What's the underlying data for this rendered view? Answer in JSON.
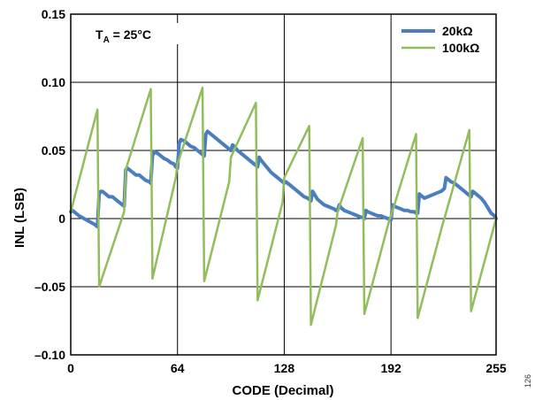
{
  "chart_data": {
    "type": "line",
    "xlabel": "CODE (Decimal)",
    "ylabel": "INL (LSB)",
    "xlim": [
      0,
      255
    ],
    "ylim": [
      -0.1,
      0.15
    ],
    "x_ticks": [
      "0",
      "64",
      "128",
      "192",
      "255"
    ],
    "x_tick_values": [
      0,
      64,
      128,
      192,
      255
    ],
    "y_ticks": [
      "0.15",
      "0.10",
      "0.05",
      "0",
      "–0.05",
      "–0.10"
    ],
    "y_tick_values": [
      0.15,
      0.1,
      0.05,
      0,
      -0.05,
      -0.1
    ],
    "grid": true,
    "legend_position": "top-right",
    "annotation": {
      "main": "T",
      "sub": "A",
      "rest": " = 25°C"
    },
    "figure_number": "126",
    "series": [
      {
        "name": "20kΩ",
        "color": "#4a7ebf",
        "x": [
          0,
          1,
          2,
          3,
          5,
          8,
          11,
          14,
          16,
          17,
          18,
          19,
          21,
          23,
          25,
          27,
          29,
          31,
          32,
          33,
          34,
          35,
          37,
          39,
          41,
          43,
          45,
          47,
          48,
          49,
          50,
          52,
          54,
          56,
          58,
          60,
          62,
          63,
          64,
          65,
          66,
          68,
          70,
          72,
          74,
          76,
          78,
          79,
          80,
          81,
          82,
          84,
          86,
          88,
          90,
          92,
          94,
          95,
          96,
          97,
          98,
          100,
          102,
          104,
          106,
          108,
          110,
          111,
          112,
          113,
          114,
          116,
          118,
          120,
          122,
          124,
          126,
          127,
          128,
          129,
          130,
          132,
          134,
          136,
          138,
          140,
          142,
          143,
          144,
          145,
          146,
          148,
          150,
          152,
          154,
          156,
          158,
          159,
          160,
          161,
          162,
          164,
          166,
          168,
          170,
          172,
          174,
          175,
          176,
          177,
          178,
          180,
          182,
          184,
          186,
          188,
          190,
          191,
          192,
          193,
          194,
          196,
          198,
          200,
          202,
          204,
          206,
          207,
          208,
          209,
          210,
          212,
          214,
          216,
          218,
          220,
          222,
          223,
          224,
          225,
          226,
          228,
          230,
          232,
          234,
          236,
          238,
          239,
          240,
          241,
          242,
          244,
          246,
          248,
          250,
          252,
          254,
          255
        ],
        "y": [
          0.005,
          0.006,
          0.005,
          0.004,
          0.002,
          0.0,
          -0.002,
          -0.004,
          -0.006,
          0.018,
          0.02,
          0.02,
          0.018,
          0.016,
          0.016,
          0.014,
          0.012,
          0.01,
          0.009,
          0.036,
          0.037,
          0.036,
          0.034,
          0.032,
          0.032,
          0.03,
          0.028,
          0.027,
          0.026,
          0.046,
          0.049,
          0.048,
          0.046,
          0.044,
          0.043,
          0.041,
          0.04,
          0.038,
          0.037,
          0.055,
          0.058,
          0.057,
          0.055,
          0.053,
          0.052,
          0.05,
          0.048,
          0.047,
          0.046,
          0.062,
          0.064,
          0.062,
          0.06,
          0.058,
          0.056,
          0.054,
          0.052,
          0.051,
          0.05,
          0.054,
          0.053,
          0.05,
          0.048,
          0.046,
          0.044,
          0.042,
          0.04,
          0.039,
          0.038,
          0.045,
          0.043,
          0.04,
          0.037,
          0.034,
          0.032,
          0.03,
          0.028,
          0.027,
          0.026,
          0.027,
          0.026,
          0.024,
          0.022,
          0.02,
          0.018,
          0.016,
          0.015,
          0.014,
          0.013,
          0.02,
          0.018,
          0.014,
          0.012,
          0.01,
          0.009,
          0.008,
          0.007,
          0.006,
          0.006,
          0.01,
          0.008,
          0.006,
          0.005,
          0.004,
          0.003,
          0.002,
          0.001,
          0.001,
          0.0,
          0.006,
          0.005,
          0.004,
          0.003,
          0.002,
          0.002,
          0.001,
          0.0,
          0.0,
          -0.001,
          0.01,
          0.009,
          0.008,
          0.007,
          0.006,
          0.006,
          0.005,
          0.005,
          0.004,
          0.004,
          0.018,
          0.017,
          0.015,
          0.016,
          0.017,
          0.018,
          0.019,
          0.02,
          0.021,
          0.022,
          0.03,
          0.029,
          0.027,
          0.026,
          0.024,
          0.022,
          0.02,
          0.018,
          0.017,
          0.016,
          0.02,
          0.019,
          0.017,
          0.015,
          0.012,
          0.008,
          0.004,
          0.002,
          0.0
        ]
      },
      {
        "name": "100kΩ",
        "color": "#92bd5c",
        "x": [
          0,
          16,
          17,
          32,
          33,
          48,
          49,
          63,
          64,
          79,
          80,
          95,
          96,
          111,
          112,
          127,
          128,
          143,
          144,
          159,
          160,
          175,
          176,
          191,
          192,
          207,
          208,
          223,
          224,
          239,
          240,
          255
        ],
        "y": [
          0.005,
          0.08,
          -0.05,
          0.005,
          0.036,
          0.095,
          -0.044,
          0.03,
          0.04,
          0.096,
          -0.046,
          0.027,
          0.045,
          0.085,
          -0.06,
          0.012,
          0.03,
          0.068,
          -0.078,
          -0.005,
          0.005,
          0.059,
          -0.07,
          -0.001,
          0.002,
          0.062,
          -0.073,
          -0.004,
          0.0,
          0.065,
          -0.068,
          0.0
        ]
      }
    ]
  }
}
